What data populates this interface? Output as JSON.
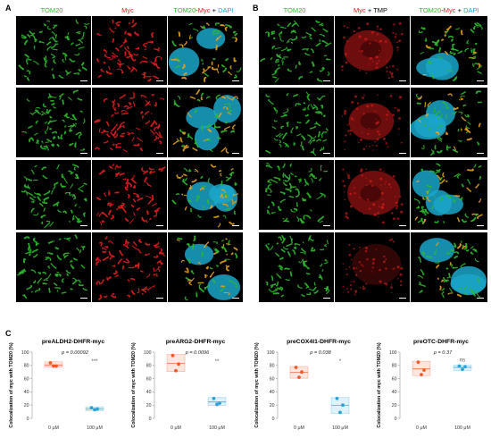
{
  "panelA": {
    "letter": "A",
    "headers": {
      "tom20": "TOM20",
      "myc": "Myc",
      "merge_tom": "TOM20",
      "merge_dash": "-",
      "merge_myc": "Myc",
      "merge_plus": " + ",
      "merge_dapi": "DAPI"
    },
    "rows": [
      "preALDH2-DHFR-myc",
      "preARG2-DHFR-myc",
      "preCOX4I1-DHFR-myc",
      "preOTC-DHFR-myc"
    ]
  },
  "panelB": {
    "letter": "B",
    "headers": {
      "tom20": "TOM20",
      "myc": "Myc",
      "plus": " + ",
      "tmp": "TMP",
      "merge_tom": "TOM20",
      "merge_dash": "-",
      "merge_myc": "Myc",
      "merge_plus": " + ",
      "merge_dapi": "DAPI"
    }
  },
  "panelC": {
    "letter": "C"
  },
  "colors": {
    "green": "#2db92d",
    "red": "#e01e1e",
    "cyan": "#1aa6c8",
    "orange": "#f05a28",
    "blue": "#2aa4d6",
    "sig": "#555555"
  },
  "chart_data": [
    {
      "type": "scatter",
      "title": "preALDH2-DHFR-myc",
      "ylabel": "Colocalization of myc with TOM20 (%)",
      "ylim": [
        0,
        100
      ],
      "yticks": [
        0,
        20,
        40,
        60,
        80,
        100
      ],
      "categories": [
        "0 μM",
        "100 μM"
      ],
      "groups": [
        {
          "points": [
            84,
            79,
            79
          ],
          "mean": 80.7
        },
        {
          "points": [
            16,
            14,
            13
          ],
          "mean": 14.3
        }
      ],
      "pvalue": "p = 0.00092",
      "significance": "***"
    },
    {
      "type": "scatter",
      "title": "preARG2-DHFR-myc",
      "ylabel": "Colocalization of myc with TOM20 (%)",
      "ylim": [
        0,
        100
      ],
      "yticks": [
        0,
        20,
        40,
        60,
        80,
        100
      ],
      "categories": [
        "0 μM",
        "100 μM"
      ],
      "groups": [
        {
          "points": [
            95,
            82,
            72
          ],
          "mean": 83
        },
        {
          "points": [
            30,
            23,
            21
          ],
          "mean": 24.7
        }
      ],
      "pvalue": "p = 0.0096",
      "significance": "**"
    },
    {
      "type": "scatter",
      "title": "preCOX4I1-DHFR-myc",
      "ylabel": "Colocalization of myc with TOM20 (%)",
      "ylim": [
        0,
        100
      ],
      "yticks": [
        0,
        20,
        40,
        60,
        80,
        100
      ],
      "categories": [
        "0 μM",
        "100 μM"
      ],
      "groups": [
        {
          "points": [
            77,
            70,
            62
          ],
          "mean": 69.7
        },
        {
          "points": [
            30,
            20,
            9
          ],
          "mean": 19.7
        }
      ],
      "pvalue": "p = 0.038",
      "significance": "*"
    },
    {
      "type": "scatter",
      "title": "preOTC-DHFR-myc",
      "ylabel": "Colocalization of myc with TOM20 (%)",
      "ylim": [
        0,
        100
      ],
      "yticks": [
        0,
        20,
        40,
        60,
        80,
        100
      ],
      "categories": [
        "0 μM",
        "100 μM"
      ],
      "groups": [
        {
          "points": [
            85,
            73,
            66
          ],
          "mean": 74.7
        },
        {
          "points": [
            79,
            78,
            74
          ],
          "mean": 77
        }
      ],
      "pvalue": "p = 0.37",
      "significance": "ns"
    }
  ]
}
